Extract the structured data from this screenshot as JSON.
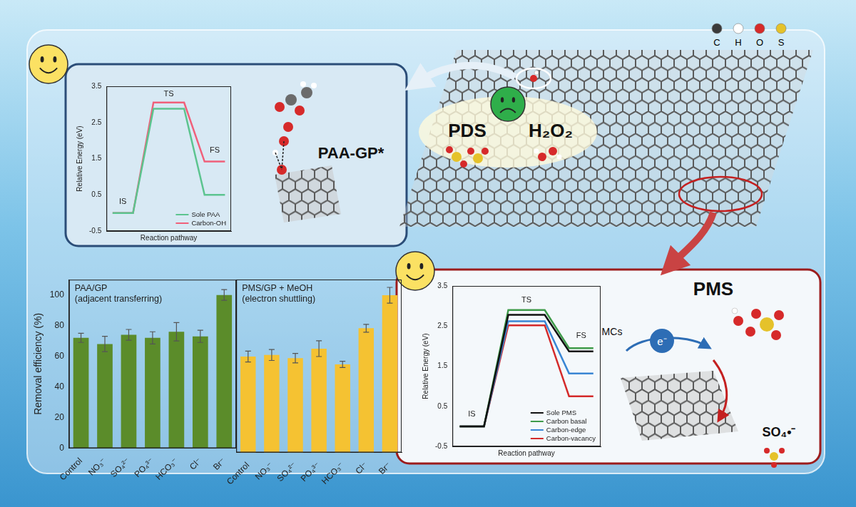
{
  "chart_data": [
    {
      "type": "line",
      "x_label": "Reaction pathway",
      "y_label": "Relative Energy (eV)",
      "x": [
        0,
        1,
        2,
        3.5,
        4.5,
        5.5
      ],
      "xlim": [
        -0.3,
        5.8
      ],
      "ylim": [
        -0.5,
        3.5
      ],
      "yticks": [
        -0.5,
        0.5,
        1.5,
        2.5,
        3.5
      ],
      "tick_labels": "y",
      "grid": false,
      "legend": "lower right",
      "series": [
        {
          "name": "Sole PAA",
          "color": "#5cc48f",
          "values": [
            0,
            0,
            2.88,
            2.88,
            0.5,
            0.5
          ]
        },
        {
          "name": "Carbon-OH",
          "color": "#f0607a",
          "values": [
            0,
            0,
            3.05,
            3.05,
            1.42,
            1.42
          ]
        }
      ],
      "annotations": [
        {
          "text": "IS",
          "x": 0.5,
          "y": 0.3
        },
        {
          "text": "TS",
          "x": 2.75,
          "y": 3.28
        },
        {
          "text": "FS",
          "x": 5,
          "y": 1.72
        }
      ]
    },
    {
      "type": "bar",
      "title": [
        "PAA/GP",
        "(adjacent transferring)"
      ],
      "y_label": "Removal efficiency (%)",
      "categories": [
        "Control",
        "NO₃⁻",
        "SO₄²⁻",
        "PO₄³⁻",
        "HCO₃⁻",
        "Cl⁻",
        "Br⁻"
      ],
      "values": [
        72,
        68,
        74,
        72,
        76,
        73,
        100
      ],
      "errors": [
        3,
        5,
        3.5,
        4,
        6,
        4,
        3.5
      ],
      "color": "#5b8c2a",
      "ylim": [
        0,
        110
      ],
      "yticks": [
        0,
        20,
        40,
        60,
        80,
        100
      ],
      "grid": false
    },
    {
      "type": "bar",
      "title": [
        "PMS/GP + MeOH",
        "(electron shuttling)"
      ],
      "categories": [
        "Control",
        "NO₃⁻",
        "SO₄²⁻",
        "PO₄³⁻",
        "HCO₃⁻",
        "Cl⁻",
        "Br⁻"
      ],
      "values": [
        61,
        62,
        60,
        66,
        56,
        79,
        100
      ],
      "errors": [
        3.5,
        3.5,
        3,
        5,
        2,
        2.5,
        5
      ],
      "color": "#f5c232",
      "ylim": [
        0,
        110
      ],
      "yticks": [
        0,
        20,
        40,
        60,
        80,
        100
      ],
      "grid": false,
      "tick_labels": "x"
    },
    {
      "type": "line",
      "x_label": "Reaction pathway",
      "y_label": "Relative Energy (eV)",
      "x": [
        0,
        1,
        2,
        3.5,
        4.5,
        5.5
      ],
      "xlim": [
        -0.3,
        5.8
      ],
      "ylim": [
        -0.5,
        3.5
      ],
      "yticks": [
        -0.5,
        0.5,
        1.5,
        2.5,
        3.5
      ],
      "tick_labels": "y",
      "grid": false,
      "legend": "lower right",
      "series": [
        {
          "name": "Sole PMS",
          "color": "#111111",
          "values": [
            0,
            0,
            2.78,
            2.78,
            1.87,
            1.87
          ]
        },
        {
          "name": "Carbon basal",
          "color": "#3f9b4a",
          "values": [
            0,
            0,
            2.9,
            2.9,
            1.95,
            1.95
          ]
        },
        {
          "name": "Carbon-edge",
          "color": "#3a86d4",
          "values": [
            0,
            0,
            2.62,
            2.62,
            1.32,
            1.32
          ]
        },
        {
          "name": "Carbon-vacancy",
          "color": "#d42a2a",
          "values": [
            0,
            0,
            2.52,
            2.52,
            0.75,
            0.75
          ]
        }
      ],
      "annotations": [
        {
          "text": "IS",
          "x": 0.5,
          "y": 0.3
        },
        {
          "text": "TS",
          "x": 2.75,
          "y": 3.15
        },
        {
          "text": "FS",
          "x": 5,
          "y": 2.25
        }
      ]
    }
  ],
  "diagram": {
    "atom_legend": [
      "C",
      "H",
      "O",
      "S"
    ],
    "paa_label": "PAA-GP*",
    "pds": "PDS",
    "h2o2": "H₂O₂",
    "pms": "PMS",
    "mcs": "MCs",
    "electron": "e⁻",
    "sulfate_radical": "SO₄•⁻"
  }
}
